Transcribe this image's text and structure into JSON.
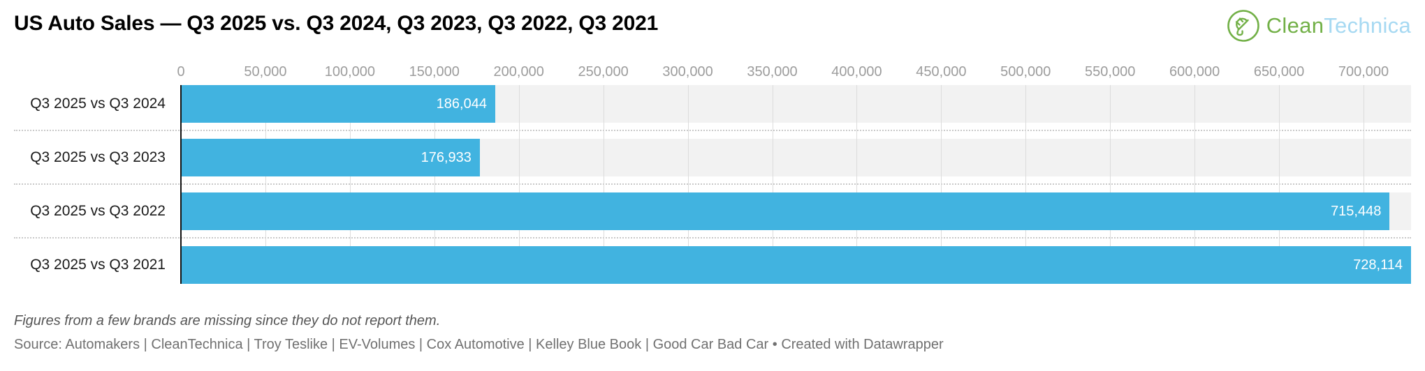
{
  "header": {
    "title": "US Auto Sales — Q3 2025 vs. Q3 2024, Q3 2023, Q3 2022, Q3 2021",
    "logo": {
      "part1": "Clean",
      "part2": "Technica",
      "green": "#72b047",
      "light_blue": "#a6d9f2"
    }
  },
  "chart_data": {
    "type": "bar",
    "orientation": "horizontal",
    "title": "US Auto Sales — Q3 2025 vs. Q3 2024, Q3 2023, Q3 2022, Q3 2021",
    "categories": [
      "Q3 2025 vs Q3 2024",
      "Q3 2025 vs Q3 2023",
      "Q3 2025 vs Q3 2022",
      "Q3 2025 vs Q3 2021"
    ],
    "values": [
      186044,
      176933,
      715448,
      728114
    ],
    "value_labels": [
      "186,044",
      "176,933",
      "715,448",
      "728,114"
    ],
    "xlim": [
      0,
      728114
    ],
    "x_ticks": [
      0,
      50000,
      100000,
      150000,
      200000,
      250000,
      300000,
      350000,
      400000,
      450000,
      500000,
      550000,
      600000,
      650000,
      700000
    ],
    "x_tick_labels": [
      "0",
      "50,000",
      "100,000",
      "150,000",
      "200,000",
      "250,000",
      "300,000",
      "350,000",
      "400,000",
      "450,000",
      "500,000",
      "550,000",
      "600,000",
      "650,000",
      "700,000"
    ],
    "xlabel": "",
    "ylabel": "",
    "grid": "vertical",
    "legend": "none",
    "bar_color": "#41b3e0",
    "row_band_color": "#f2f2f2",
    "gridline_color": "#dcdcdc",
    "axis_line_color": "#111111",
    "tick_label_color": "#9c9c9c",
    "value_label_color": "#ffffff"
  },
  "footer": {
    "note": "Figures from a few brands are missing since they do not report them.",
    "source": "Source: Automakers | CleanTechnica | Troy Teslike | EV-Volumes | Cox Automotive | Kelley Blue Book | Good Car Bad Car • Created with Datawrapper"
  }
}
